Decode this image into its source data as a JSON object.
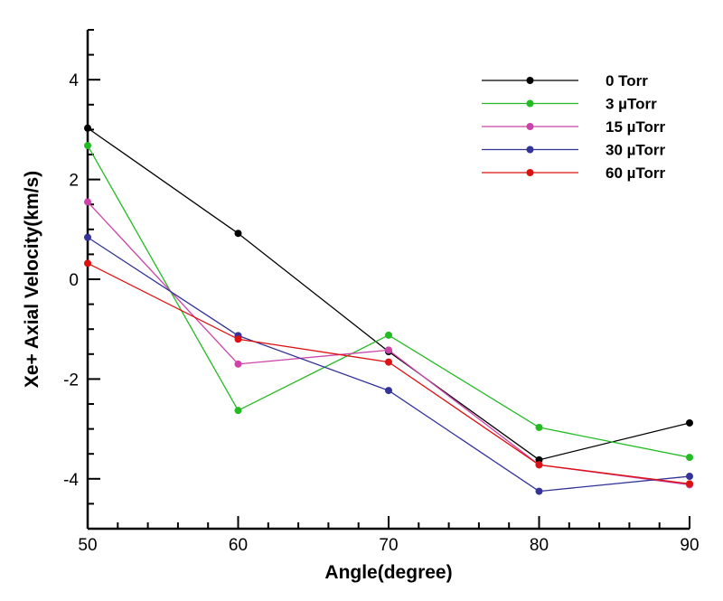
{
  "chart_data": {
    "type": "line",
    "title": "",
    "xlabel": "Angle(degree)",
    "ylabel": "Xe+ Axial Velocity(km/s)",
    "xlim": [
      50,
      90
    ],
    "ylim": [
      -5,
      5
    ],
    "xticks": [
      50,
      60,
      70,
      80,
      90
    ],
    "yticks": [
      -4,
      -2,
      0,
      2,
      4
    ],
    "grid": false,
    "legend_position": "top-right",
    "x": [
      50,
      60,
      70,
      80,
      90
    ],
    "series": [
      {
        "name": "0 Torr",
        "color": "#000000",
        "values": [
          3.03,
          0.92,
          -1.45,
          -3.62,
          -2.88
        ]
      },
      {
        "name": "3 µTorr",
        "color": "#22bb22",
        "values": [
          2.68,
          -2.63,
          -1.12,
          -2.97,
          -3.57
        ]
      },
      {
        "name": "15 µTorr",
        "color": "#cc44aa",
        "values": [
          1.55,
          -1.7,
          -1.42,
          -3.72,
          -4.12
        ]
      },
      {
        "name": "30 µTorr",
        "color": "#333399",
        "values": [
          0.84,
          -1.13,
          -2.23,
          -4.25,
          -3.95
        ]
      },
      {
        "name": "60 µTorr",
        "color": "#dd1111",
        "values": [
          0.32,
          -1.2,
          -1.66,
          -3.72,
          -4.1
        ]
      }
    ]
  }
}
